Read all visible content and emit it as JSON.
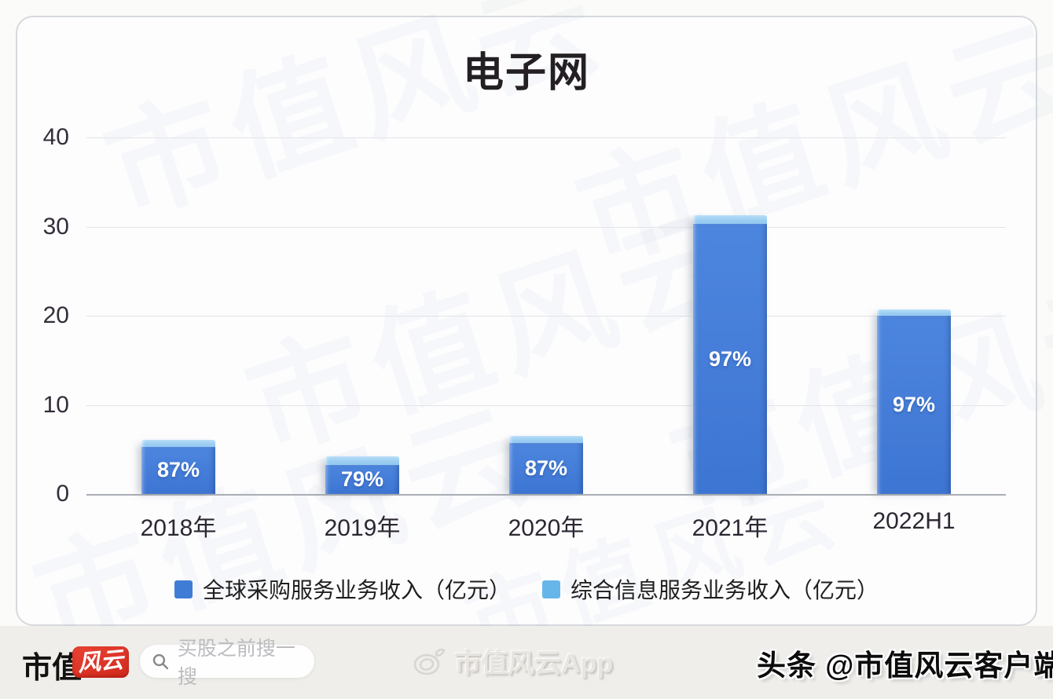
{
  "title": "电子网",
  "watermark": {
    "text": "市值风云"
  },
  "chart_data": {
    "type": "bar",
    "stacked": true,
    "title": "电子网",
    "categories": [
      "2018年",
      "2019年",
      "2020年",
      "2021年",
      "2022H1"
    ],
    "series": [
      {
        "name": "全球采购服务业务收入（亿元）",
        "color": "#3f7cd6",
        "values": [
          5.3,
          3.3,
          5.7,
          30.3,
          20.0
        ]
      },
      {
        "name": "综合信息服务业务收入（亿元）",
        "color": "#67b6ea",
        "values": [
          0.8,
          0.9,
          0.8,
          1.0,
          0.7
        ]
      }
    ],
    "bar_labels": [
      "87%",
      "79%",
      "87%",
      "97%",
      "97%"
    ],
    "ylim": [
      0,
      40
    ],
    "yticks": [
      0,
      10,
      20,
      30,
      40
    ],
    "grid": true,
    "legend_position": "bottom"
  },
  "footer": {
    "brand_left_text": "市值",
    "brand_logo_text": "风云",
    "search_placeholder": "买股之前搜一搜",
    "center_app_label": "市值风云App",
    "right_attribution": "头条 @市值风云客户端"
  }
}
